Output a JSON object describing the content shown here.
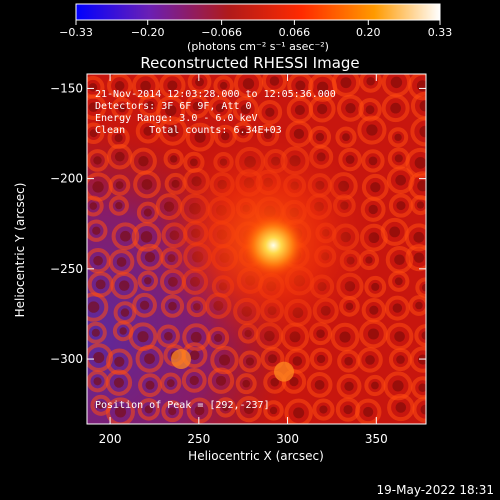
{
  "colorbar": {
    "ticks": [
      "-0.33",
      "-0.20",
      "-0.066",
      "0.066",
      "0.20",
      "0.33"
    ],
    "tick_values": [
      -0.33,
      -0.2,
      -0.066,
      0.066,
      0.2,
      0.33
    ],
    "range": [
      -0.33,
      0.33
    ],
    "unit_label": "(photons cm⁻² s⁻¹ asec⁻²)",
    "colors": [
      "#0000ff",
      "#6a1fb5",
      "#b01a1a",
      "#ff2a00",
      "#ff9a00",
      "#ffffff"
    ]
  },
  "chart_data": {
    "type": "heatmap",
    "title": "Reconstructed RHESSI Image",
    "xlabel": "Heliocentric X (arcsec)",
    "ylabel": "Heliocentric Y (arcsec)",
    "xlim": [
      187,
      378
    ],
    "ylim": [
      -336,
      -142
    ],
    "xticks": [
      200,
      250,
      300,
      350
    ],
    "yticks": [
      -150,
      -200,
      -250,
      -300
    ],
    "info_lines": [
      "21-Nov-2014 12:03:28.000 to 12:05:36.000",
      "Detectors: 3F 6F 9F, Att 0",
      "Energy Range: 3.0 - 6.0 keV",
      "Clean    Total counts: 6.34E+03"
    ],
    "peak_label": "Position of Peak = [292,-237]",
    "peak": {
      "x": 292,
      "y": -237
    },
    "secondary_sources": [
      {
        "x": 240,
        "y": -300
      },
      {
        "x": 298,
        "y": -307
      }
    ]
  },
  "footer": {
    "date": "19-May-2022 18:31"
  }
}
